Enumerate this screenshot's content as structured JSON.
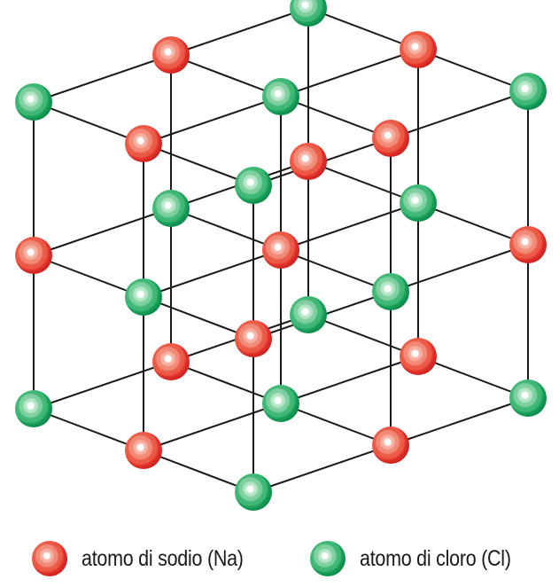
{
  "colors": {
    "sodium": "#e8322a",
    "chlorine": "#14a05a",
    "bond": "#1a1a1a"
  },
  "legend": {
    "sodium_label": "atomo di sodio (Na)",
    "chlorine_label": "atomo di cloro  (Cl)"
  }
}
